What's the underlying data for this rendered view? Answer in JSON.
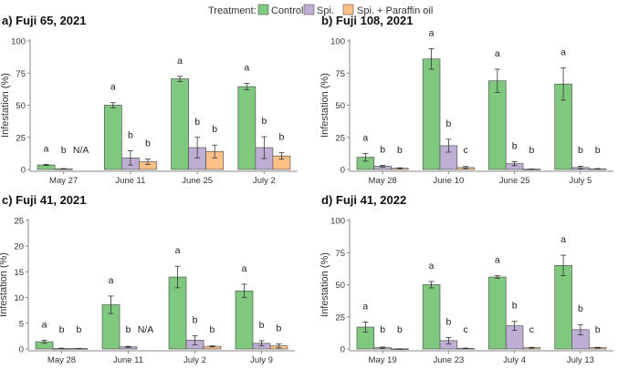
{
  "legend": {
    "title": "Treatment:",
    "items": [
      {
        "label": "Control",
        "color": "#7fc97f"
      },
      {
        "label": "Spi.",
        "color": "#beaed4"
      },
      {
        "label": "Spi. + Paraffin oil",
        "color": "#fdc086"
      }
    ]
  },
  "chart_data": [
    {
      "type": "bar",
      "title": "a) Fuji 65, 2021",
      "ylabel": "Infestation (%)",
      "ylim": [
        0,
        100
      ],
      "yticks": [
        0,
        25,
        50,
        75,
        100
      ],
      "categories": [
        "May 27",
        "June 11",
        "June 25",
        "July 2"
      ],
      "series": [
        {
          "name": "Control",
          "values": [
            3.5,
            50,
            70.5,
            64.5
          ],
          "errors": [
            0.4,
            2,
            2,
            2.5
          ],
          "letters": [
            "a",
            "a",
            "a",
            "a"
          ]
        },
        {
          "name": "Spi.",
          "values": [
            0.5,
            9,
            17,
            17
          ],
          "errors": [
            0.2,
            5.5,
            8,
            8.5
          ],
          "letters": [
            "b",
            "b",
            "b",
            "b"
          ]
        },
        {
          "name": "Spi. + Paraffin oil",
          "values": [
            null,
            6,
            14,
            10.5
          ],
          "errors": [
            null,
            2,
            5,
            2.5
          ],
          "letters": [
            "N/A",
            "b",
            "b",
            "b"
          ]
        }
      ]
    },
    {
      "type": "bar",
      "title": "b) Fuji 108, 2021",
      "ylabel": "Infestation (%)",
      "ylim": [
        0,
        100
      ],
      "yticks": [
        0,
        25,
        50,
        75,
        100
      ],
      "categories": [
        "May 28",
        "June 10",
        "June 25",
        "July 5"
      ],
      "series": [
        {
          "name": "Control",
          "values": [
            9.5,
            86,
            69,
            66.5
          ],
          "errors": [
            3,
            8,
            9,
            12.5
          ],
          "letters": [
            "a",
            "a",
            "a",
            "a"
          ]
        },
        {
          "name": "Spi.",
          "values": [
            2.5,
            18.5,
            4.5,
            1.5
          ],
          "errors": [
            0.6,
            5,
            1.5,
            1
          ],
          "letters": [
            "b",
            "b",
            "b",
            "b"
          ]
        },
        {
          "name": "Spi. + Paraffin oil",
          "values": [
            1,
            1.5,
            0.3,
            0.5
          ],
          "errors": [
            0.3,
            0.8,
            0.1,
            0.2
          ],
          "letters": [
            "b",
            "c",
            "b",
            "b"
          ]
        }
      ]
    },
    {
      "type": "bar",
      "title": "c) Fuji 41, 2021",
      "ylabel": "Infestation (%)",
      "ylim": [
        0,
        25
      ],
      "yticks": [
        0,
        5,
        10,
        15,
        20,
        25
      ],
      "categories": [
        "May 28",
        "June 11",
        "July 2",
        "July 9"
      ],
      "series": [
        {
          "name": "Control",
          "values": [
            1.4,
            8.6,
            14,
            11.3
          ],
          "errors": [
            0.3,
            1.7,
            2.1,
            1.3
          ],
          "letters": [
            "a",
            "a",
            "a",
            "a"
          ]
        },
        {
          "name": "Spi.",
          "values": [
            0.1,
            0.4,
            1.7,
            1.1
          ],
          "errors": [
            0.05,
            0.1,
            0.9,
            0.5
          ],
          "letters": [
            "b",
            "b",
            "b",
            "b"
          ]
        },
        {
          "name": "Spi. + Paraffin oil",
          "values": [
            0.1,
            null,
            0.5,
            0.6
          ],
          "errors": [
            0.02,
            null,
            0.1,
            0.4
          ],
          "letters": [
            "b",
            "N/A",
            "b",
            "b"
          ]
        }
      ]
    },
    {
      "type": "bar",
      "title": "d) Fuji 41, 2022",
      "ylabel": "Infestation (%)",
      "ylim": [
        0,
        100
      ],
      "yticks": [
        0,
        25,
        50,
        75,
        100
      ],
      "categories": [
        "May 19",
        "June 23",
        "July 4",
        "July 13"
      ],
      "series": [
        {
          "name": "Control",
          "values": [
            17,
            50,
            56,
            65
          ],
          "errors": [
            4,
            2.5,
            1,
            8
          ],
          "letters": [
            "a",
            "a",
            "a",
            "a"
          ]
        },
        {
          "name": "Spi.",
          "values": [
            1,
            6.5,
            18,
            15
          ],
          "errors": [
            0.5,
            2.5,
            3.5,
            4
          ],
          "letters": [
            "b",
            "b",
            "b",
            "b"
          ]
        },
        {
          "name": "Spi. + Paraffin oil",
          "values": [
            0.1,
            0.5,
            1,
            1
          ],
          "errors": [
            0.05,
            0.2,
            0.3,
            0.3
          ],
          "letters": [
            "b",
            "c",
            "c",
            "b"
          ]
        }
      ]
    }
  ]
}
